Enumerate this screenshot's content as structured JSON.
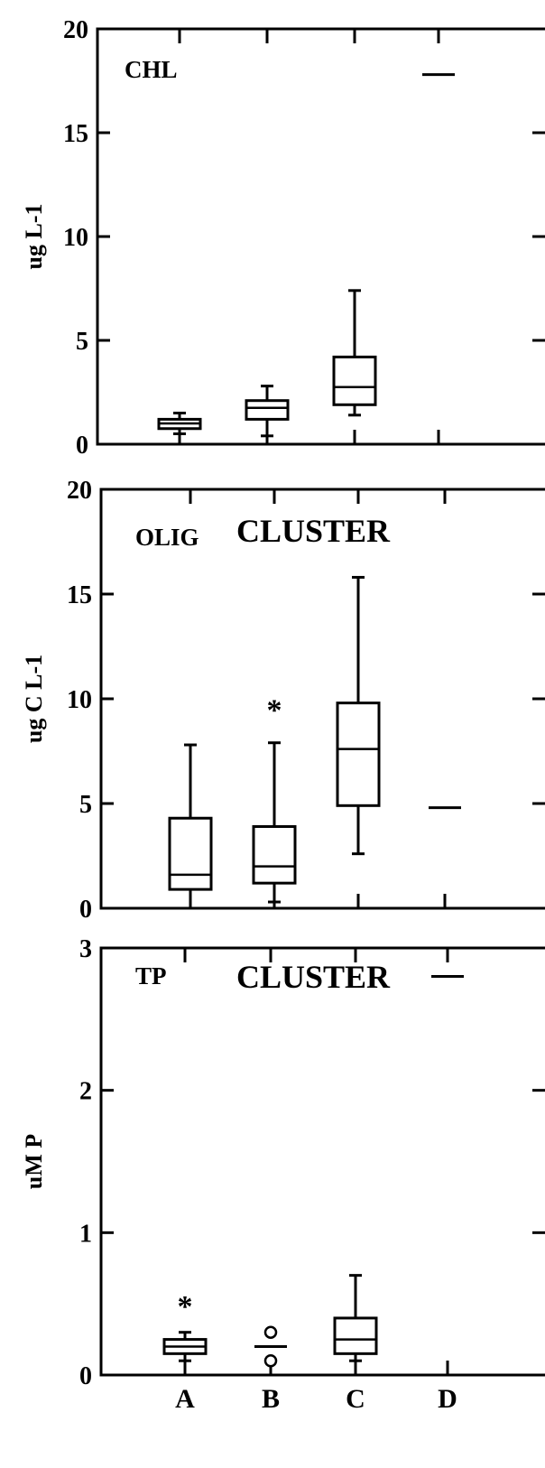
{
  "chart_data": [
    {
      "type": "box",
      "title": "CHL",
      "subtitle": "",
      "ylabel": "ug L-1",
      "ylim": [
        0,
        20
      ],
      "yticks": [
        "0",
        "5",
        "10",
        "15",
        "20"
      ],
      "categories": [
        "A",
        "B",
        "C",
        "D"
      ],
      "boxes": [
        {
          "category": "A",
          "whisker_low": 0.5,
          "q1": 0.75,
          "median": 1.0,
          "q3": 1.2,
          "whisker_high": 1.5,
          "outliers": [],
          "extremes": []
        },
        {
          "category": "B",
          "whisker_low": 0.4,
          "q1": 1.2,
          "median": 1.75,
          "q3": 2.1,
          "whisker_high": 2.8,
          "outliers": [],
          "extremes": []
        },
        {
          "category": "C",
          "whisker_low": 1.4,
          "q1": 1.9,
          "median": 2.75,
          "q3": 4.2,
          "whisker_high": 7.4,
          "outliers": [],
          "extremes": []
        },
        {
          "category": "D",
          "whisker_low": null,
          "q1": null,
          "median": 17.8,
          "q3": null,
          "whisker_high": null,
          "outliers": [],
          "extremes": []
        }
      ]
    },
    {
      "type": "box",
      "title": "OLIG",
      "subtitle": "CLUSTER",
      "ylabel": "ug C L-1",
      "ylim": [
        0,
        20
      ],
      "yticks": [
        "0",
        "5",
        "10",
        "15",
        "20"
      ],
      "categories": [
        "A",
        "B",
        "C",
        "D"
      ],
      "boxes": [
        {
          "category": "A",
          "whisker_low": 0,
          "q1": 0.9,
          "median": 1.6,
          "q3": 4.3,
          "whisker_high": 7.8,
          "outliers": [],
          "extremes": []
        },
        {
          "category": "B",
          "whisker_low": 0.3,
          "q1": 1.2,
          "median": 2.0,
          "q3": 3.9,
          "whisker_high": 7.9,
          "outliers": [],
          "extremes": [
            9.6
          ]
        },
        {
          "category": "C",
          "whisker_low": 2.6,
          "q1": 4.9,
          "median": 7.6,
          "q3": 9.8,
          "whisker_high": 15.8,
          "outliers": [],
          "extremes": []
        },
        {
          "category": "D",
          "whisker_low": null,
          "q1": null,
          "median": 4.8,
          "q3": null,
          "whisker_high": null,
          "outliers": [],
          "extremes": []
        }
      ]
    },
    {
      "type": "box",
      "title": "TP",
      "subtitle": "CLUSTER",
      "ylabel": "uM P",
      "ylim": [
        0,
        3
      ],
      "yticks": [
        "0",
        "1",
        "2",
        "3"
      ],
      "categories": [
        "A",
        "B",
        "C",
        "D"
      ],
      "boxes": [
        {
          "category": "A",
          "whisker_low": 0.1,
          "q1": 0.15,
          "median": 0.2,
          "q3": 0.25,
          "whisker_high": 0.3,
          "outliers": [],
          "extremes": [
            0.5
          ]
        },
        {
          "category": "B",
          "whisker_low": null,
          "q1": null,
          "median": 0.2,
          "q3": null,
          "whisker_high": null,
          "outliers": [
            0.3,
            0.1
          ],
          "extremes": []
        },
        {
          "category": "C",
          "whisker_low": 0.1,
          "q1": 0.15,
          "median": 0.25,
          "q3": 0.4,
          "whisker_high": 0.7,
          "outliers": [],
          "extremes": []
        },
        {
          "category": "D",
          "whisker_low": null,
          "q1": null,
          "median": 2.8,
          "q3": null,
          "whisker_high": null,
          "outliers": [],
          "extremes": []
        }
      ]
    }
  ]
}
